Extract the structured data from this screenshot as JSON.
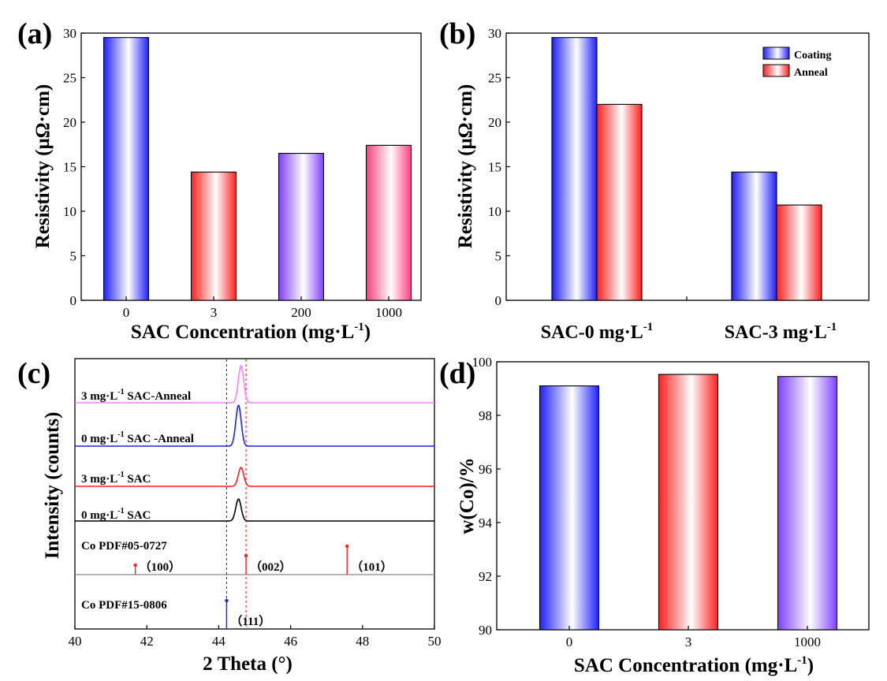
{
  "colors": {
    "blue": "#1f1fff",
    "red": "#ff1f1f",
    "purple": "#7f3fff",
    "pink": "#ff3f7f",
    "magenta": "#ff7fff",
    "black": "#000000",
    "gray": "#888888"
  },
  "chart_data": [
    {
      "type": "bar",
      "panel_label": "(a)",
      "categories": [
        "0",
        "3",
        "200",
        "1000"
      ],
      "values": [
        29.5,
        14.4,
        16.5,
        17.4
      ],
      "bar_colors": [
        "#1f1fff",
        "#ff1f1f",
        "#7f3fff",
        "#ff3f7f"
      ],
      "ylabel": "Resistivity (μΩ·cm)",
      "xlabel_main": "SAC Concentration  (mg·L",
      "xlabel_sup": "-1",
      "xlabel_end": ")",
      "ylim": [
        0,
        30
      ],
      "yticks": [
        "0",
        "5",
        "10",
        "15",
        "20",
        "25",
        "30"
      ]
    },
    {
      "type": "bar",
      "panel_label": "(b)",
      "group_labels": [
        {
          "main": "SAC-0 mg·L",
          "sup": "-1"
        },
        {
          "main": "SAC-3 mg·L",
          "sup": "-1"
        }
      ],
      "series": [
        {
          "name": "Coating",
          "color": "#1f1fff",
          "values": [
            29.5,
            14.4
          ]
        },
        {
          "name": "Anneal",
          "color": "#ff1f1f",
          "values": [
            22.0,
            10.7
          ]
        }
      ],
      "ylabel": "Resistivity (μΩ·cm)",
      "ylim": [
        0,
        30
      ],
      "yticks": [
        "0",
        "5",
        "10",
        "15",
        "20",
        "25",
        "30"
      ],
      "legend": "top-right"
    },
    {
      "type": "line",
      "panel_label": "(c)",
      "xlabel": "2 Theta (°)",
      "ylabel": "Intensity (counts)",
      "xlim": [
        40,
        50
      ],
      "xticks": [
        "40",
        "42",
        "44",
        "46",
        "48",
        "50"
      ],
      "series": [
        {
          "label_pre": "3 mg·L",
          "label_sup": "-1",
          "label_post": " SAC-Anneal",
          "color": "#ff7fff",
          "peak_x": 44.62
        },
        {
          "label_pre": "0 mg·L",
          "label_sup": "-1",
          "label_post": " SAC -Anneal",
          "color": "#1f1fff",
          "peak_x": 44.55
        },
        {
          "label_pre": "3 mg·L",
          "label_sup": "-1",
          "label_post": " SAC",
          "color": "#ff1f1f",
          "peak_x": 44.62
        },
        {
          "label_pre": "0 mg·L",
          "label_sup": "-1",
          "label_post": " SAC",
          "color": "#000000",
          "peak_x": 44.55
        }
      ],
      "reference_hcp": {
        "name": "Co PDF#05-0727",
        "color": "#ff1f1f",
        "peaks": [
          {
            "x": 41.68,
            "label": "（100）",
            "rel": 0.2
          },
          {
            "x": 44.76,
            "label": "（002）",
            "rel": 0.4
          },
          {
            "x": 47.57,
            "label": "（101）",
            "rel": 0.6
          }
        ]
      },
      "reference_fcc": {
        "name": "Co PDF#15-0806",
        "color": "#1f1fff",
        "peaks": [
          {
            "x": 44.22,
            "label": "（111）",
            "rel": 0.9
          }
        ]
      },
      "guides": [
        {
          "x": 44.22,
          "color": "#1f1fff"
        },
        {
          "x": 44.76,
          "color": "#ff1f1f"
        }
      ]
    },
    {
      "type": "bar",
      "panel_label": "(d)",
      "categories": [
        "0",
        "3",
        "1000"
      ],
      "values": [
        99.1,
        99.53,
        99.45
      ],
      "bar_colors": [
        "#1f1fff",
        "#ff1f1f",
        "#7f3fff"
      ],
      "ylabel": "w(Co)/%",
      "xlabel_main": "SAC Concentration  (mg·L",
      "xlabel_sup": "-1",
      "xlabel_end": ")",
      "ylim": [
        90,
        100
      ],
      "yticks": [
        "90",
        "92",
        "94",
        "96",
        "98",
        "100"
      ]
    }
  ]
}
